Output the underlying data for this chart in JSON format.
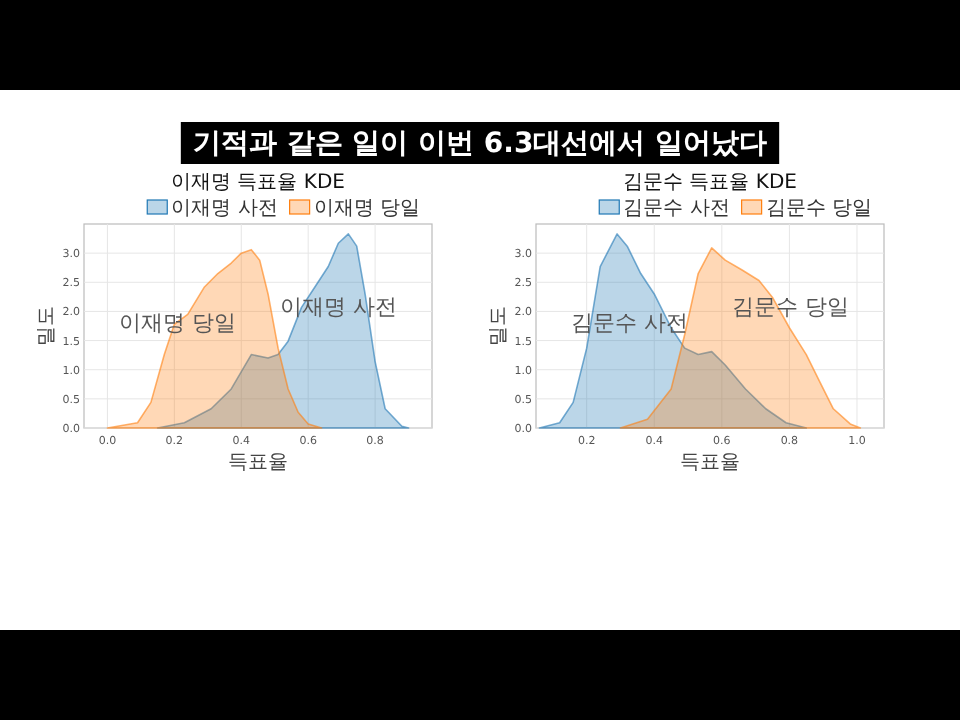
{
  "chart_data": [
    {
      "type": "area",
      "title": "이재명 득표율 KDE",
      "xlabel": "득표율",
      "ylabel": "밀도",
      "annotations": [
        "기적과 같은 일이 이번 6.3대선에서 일어났다",
        "이재명 당일",
        "이재명 사전"
      ],
      "series": [
        {
          "name": "이재명 사전",
          "color": "#1f77b4",
          "x": [
            0.15,
            0.23,
            0.31,
            0.37,
            0.43,
            0.48,
            0.51,
            0.54,
            0.58,
            0.62,
            0.66,
            0.69,
            0.72,
            0.745,
            0.77,
            0.8,
            0.83,
            0.88,
            0.9
          ],
          "values": [
            0,
            0.09,
            0.33,
            0.67,
            1.26,
            1.2,
            1.26,
            1.49,
            2.07,
            2.42,
            2.77,
            3.17,
            3.33,
            3.12,
            2.3,
            1.14,
            0.33,
            0.03,
            0
          ]
        },
        {
          "name": "이재명 당일",
          "color": "#ff7f0e",
          "x": [
            0,
            0.09,
            0.13,
            0.17,
            0.2,
            0.24,
            0.29,
            0.33,
            0.37,
            0.4,
            0.43,
            0.455,
            0.48,
            0.51,
            0.54,
            0.57,
            0.6,
            0.64
          ],
          "values": [
            0,
            0.09,
            0.44,
            1.26,
            1.78,
            1.95,
            2.42,
            2.65,
            2.83,
            3.0,
            3.06,
            2.88,
            2.3,
            1.37,
            0.67,
            0.27,
            0.07,
            0
          ]
        }
      ],
      "xlim": [
        -0.07,
        0.97
      ],
      "ylim": [
        0,
        3.5
      ],
      "xticks": [
        {
          "value": 0,
          "label": "0.0"
        },
        {
          "value": 0.2,
          "label": "0.2"
        },
        {
          "value": 0.4,
          "label": "0.4"
        },
        {
          "value": 0.6,
          "label": "0.6"
        },
        {
          "value": 0.8,
          "label": "0.8"
        }
      ],
      "yticks": [
        {
          "value": 0,
          "label": "0.0"
        },
        {
          "value": 0.5,
          "label": "0.5"
        },
        {
          "value": 1,
          "label": "1.0"
        },
        {
          "value": 1.5,
          "label": "1.5"
        },
        {
          "value": 2,
          "label": "2.0"
        },
        {
          "value": 2.5,
          "label": "2.5"
        },
        {
          "value": 3,
          "label": "3.0"
        }
      ],
      "grid": true,
      "legend": "top right"
    },
    {
      "type": "area",
      "title": "김문수 득표율 KDE",
      "xlabel": "득표율",
      "ylabel": "밀도",
      "annotations": [
        "김문수 사전",
        "김문수 당일"
      ],
      "series": [
        {
          "name": "김문수 사전",
          "color": "#1f77b4",
          "x": [
            0.06,
            0.12,
            0.16,
            0.2,
            0.24,
            0.29,
            0.32,
            0.36,
            0.4,
            0.45,
            0.49,
            0.53,
            0.57,
            0.61,
            0.67,
            0.73,
            0.79,
            0.85
          ],
          "values": [
            0,
            0.09,
            0.44,
            1.37,
            2.77,
            3.33,
            3.12,
            2.65,
            2.3,
            1.72,
            1.37,
            1.26,
            1.31,
            1.08,
            0.67,
            0.33,
            0.09,
            0
          ]
        },
        {
          "name": "김문수 당일",
          "color": "#ff7f0e",
          "x": [
            0.3,
            0.38,
            0.45,
            0.49,
            0.53,
            0.57,
            0.61,
            0.66,
            0.71,
            0.75,
            0.8,
            0.85,
            0.89,
            0.93,
            0.98,
            1.01
          ],
          "values": [
            0,
            0.15,
            0.67,
            1.6,
            2.65,
            3.09,
            2.88,
            2.71,
            2.53,
            2.24,
            1.72,
            1.26,
            0.79,
            0.33,
            0.07,
            0
          ]
        }
      ],
      "xlim": [
        0.05,
        1.08
      ],
      "ylim": [
        0,
        3.5
      ],
      "xticks": [
        {
          "value": 0.2,
          "label": "0.2"
        },
        {
          "value": 0.4,
          "label": "0.4"
        },
        {
          "value": 0.6,
          "label": "0.6"
        },
        {
          "value": 0.8,
          "label": "0.8"
        },
        {
          "value": 1.0,
          "label": "1.0"
        }
      ],
      "yticks": [
        {
          "value": 0,
          "label": "0.0"
        },
        {
          "value": 0.5,
          "label": "0.5"
        },
        {
          "value": 1,
          "label": "1.0"
        },
        {
          "value": 1.5,
          "label": "1.5"
        },
        {
          "value": 2,
          "label": "2.0"
        },
        {
          "value": 2.5,
          "label": "2.5"
        },
        {
          "value": 3,
          "label": "3.0"
        }
      ],
      "grid": true,
      "legend": "top right"
    }
  ]
}
